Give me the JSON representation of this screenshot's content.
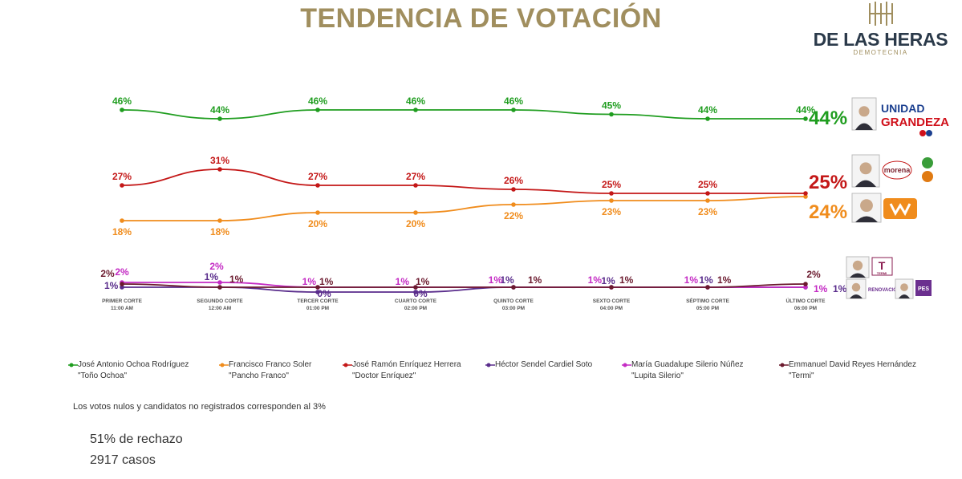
{
  "title": "TENDENCIA DE VOTACIÓN",
  "brand": {
    "name": "DE LAS HERAS",
    "subtitle": "DEMOTECNIA"
  },
  "note": "Los votos nulos y candidatos no registrados corresponden al 3%",
  "stats": {
    "rejection": "51% de rechazo",
    "cases": "2917 casos"
  },
  "party_logos": {
    "unidad_grandeza": [
      "UNIDAD",
      "GRANDEZA"
    ],
    "morena": "morena",
    "termi": "TERMI",
    "renovacion": "RENOVACIÓN",
    "pes": "PES"
  },
  "colors": {
    "ochoa": "#1f9d1f",
    "franco": "#f08c1c",
    "enriquez": "#c41818",
    "cardiel": "#5a2d8c",
    "silerio": "#c42bc4",
    "reyes": "#6b1a2e",
    "gold": "#a08e5e"
  },
  "chart_data": {
    "type": "line",
    "title": "TENDENCIA DE VOTACIÓN",
    "categories": [
      "PRIMER CORTE",
      "SEGUNDO CORTE",
      "TERCER CORTE",
      "CUARTO CORTE",
      "QUINTO CORTE",
      "SEXTO CORTE",
      "SÉPTIMO CORTE",
      "ÚLTIMO CORTE"
    ],
    "times": [
      "11:00 AM",
      "12:00 AM",
      "01:00 PM",
      "02:00 PM",
      "03:00 PM",
      "04:00 PM",
      "05:00 PM",
      "06:00 PM"
    ],
    "unit": "%",
    "ylim": [
      0,
      50
    ],
    "series": [
      {
        "key": "ochoa",
        "name": "José Antonio Ochoa Rodríguez",
        "nickname": "\"Toño Ochoa\"",
        "values": [
          46,
          44,
          46,
          46,
          46,
          45,
          44,
          44
        ],
        "labels": [
          "46%",
          "44%",
          "46%",
          "46%",
          "46%",
          "45%",
          "44%",
          "44%"
        ]
      },
      {
        "key": "enriquez",
        "name": "José Ramón Enríquez Herrera",
        "nickname": "\"Doctor Enríquez\"",
        "values": [
          27,
          31,
          27,
          27,
          26,
          25,
          25,
          25
        ],
        "labels": [
          "27%",
          "31%",
          "27%",
          "27%",
          "26%",
          "25%",
          "25%",
          "25%"
        ]
      },
      {
        "key": "franco",
        "name": "Francisco Franco Soler",
        "nickname": "\"Pancho Franco\"",
        "values": [
          18,
          18,
          20,
          20,
          22,
          23,
          23,
          24
        ],
        "labels": [
          "18%",
          "18%",
          "20%",
          "20%",
          "22%",
          "23%",
          "23%",
          "24%"
        ]
      },
      {
        "key": "reyes",
        "name": "Emmanuel David Reyes Hernández",
        "nickname": "\"Termi\"",
        "values": [
          2,
          1,
          1,
          1,
          1,
          1,
          1,
          2
        ],
        "labels": [
          "2%",
          "1%",
          "1%",
          "1%",
          "1%",
          "1%",
          "1%",
          "2%"
        ]
      },
      {
        "key": "silerio",
        "name": "María Guadalupe Silerio Núñez",
        "nickname": "\"Lupita Silerio\"",
        "values": [
          2,
          2,
          1,
          1,
          1,
          1,
          1,
          1
        ],
        "labels": [
          "2%",
          "2%",
          "1%",
          "1%",
          "1%",
          "1%",
          "1%",
          "1%"
        ]
      },
      {
        "key": "cardiel",
        "name": "Héctor Sendel Cardiel Soto",
        "nickname": "",
        "values": [
          1,
          1,
          0,
          0,
          1,
          1,
          1,
          1
        ],
        "labels": [
          "1%",
          "1%",
          "0%",
          "0%",
          "1%",
          "1%",
          "1%",
          "1%"
        ]
      }
    ],
    "legend_order": [
      "ochoa",
      "franco",
      "enriquez",
      "cardiel",
      "silerio",
      "reyes"
    ]
  }
}
